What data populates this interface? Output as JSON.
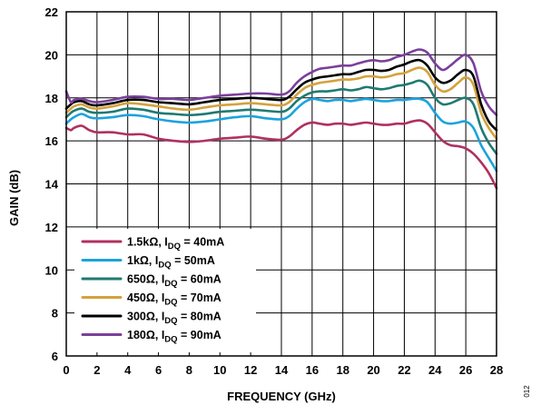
{
  "chart_data": {
    "type": "line",
    "xlabel": "FREQUENCY (GHz)",
    "ylabel": "GAIN (dB)",
    "xlim": [
      0,
      28
    ],
    "ylim": [
      6,
      22
    ],
    "xticks": [
      0,
      2,
      4,
      6,
      8,
      10,
      12,
      14,
      16,
      18,
      20,
      22,
      24,
      26,
      28
    ],
    "yticks": [
      6,
      8,
      10,
      12,
      14,
      16,
      18,
      20,
      22
    ],
    "grid": true,
    "legend_position": "bottom-left",
    "side_note": "012",
    "x": [
      0,
      0.3,
      0.5,
      1,
      1.5,
      2,
      3,
      4,
      5,
      6,
      7,
      8,
      9,
      10,
      11,
      12,
      13,
      14,
      14.5,
      15,
      15.5,
      16,
      16.5,
      17,
      17.5,
      18,
      18.5,
      19,
      19.5,
      20,
      20.5,
      21,
      21.5,
      22,
      22.5,
      23,
      23.5,
      24,
      24.5,
      25,
      25.5,
      26,
      26.5,
      27,
      27.5,
      28
    ],
    "series": [
      {
        "resistor": "1.5kΩ, I",
        "subscript": "DQ",
        "current": " = 40mA",
        "color": "#b03060",
        "values": [
          16.6,
          16.5,
          16.6,
          16.7,
          16.5,
          16.4,
          16.4,
          16.3,
          16.3,
          16.1,
          16.0,
          15.95,
          16.0,
          16.1,
          16.15,
          16.2,
          16.1,
          16.05,
          16.2,
          16.5,
          16.75,
          16.85,
          16.8,
          16.75,
          16.8,
          16.8,
          16.75,
          16.8,
          16.85,
          16.8,
          16.75,
          16.75,
          16.8,
          16.8,
          16.9,
          16.95,
          16.8,
          16.4,
          16.0,
          15.8,
          15.75,
          15.65,
          15.4,
          15.0,
          14.5,
          13.8
        ]
      },
      {
        "resistor": "1kΩ, I",
        "subscript": "DQ",
        "current": " = 50mA",
        "color": "#1ca3dc",
        "values": [
          16.8,
          17.0,
          17.1,
          17.25,
          17.1,
          17.05,
          17.1,
          17.2,
          17.15,
          17.0,
          16.9,
          16.85,
          16.9,
          17.0,
          17.1,
          17.15,
          17.05,
          17.0,
          17.15,
          17.5,
          17.8,
          17.95,
          17.9,
          17.85,
          17.9,
          17.9,
          17.85,
          17.9,
          17.95,
          17.9,
          17.85,
          17.85,
          17.9,
          17.9,
          17.95,
          17.95,
          17.8,
          17.3,
          16.9,
          16.8,
          16.85,
          16.9,
          16.6,
          15.8,
          15.2,
          14.6
        ]
      },
      {
        "resistor": "650Ω, I",
        "subscript": "DQ",
        "current": " = 60mA",
        "color": "#1e7a72",
        "values": [
          17.1,
          17.3,
          17.4,
          17.5,
          17.35,
          17.3,
          17.35,
          17.5,
          17.45,
          17.3,
          17.25,
          17.2,
          17.25,
          17.35,
          17.4,
          17.45,
          17.4,
          17.35,
          17.5,
          17.85,
          18.1,
          18.25,
          18.3,
          18.3,
          18.35,
          18.4,
          18.35,
          18.4,
          18.5,
          18.45,
          18.4,
          18.45,
          18.55,
          18.6,
          18.7,
          18.8,
          18.6,
          18.0,
          17.7,
          17.75,
          17.9,
          18.0,
          17.7,
          16.6,
          15.9,
          15.4
        ]
      },
      {
        "resistor": "450Ω, I",
        "subscript": "DQ",
        "current": " = 70mA",
        "color": "#d4a23c",
        "values": [
          17.3,
          17.5,
          17.6,
          17.7,
          17.55,
          17.5,
          17.6,
          17.75,
          17.7,
          17.6,
          17.5,
          17.45,
          17.55,
          17.65,
          17.7,
          17.75,
          17.7,
          17.65,
          17.8,
          18.15,
          18.45,
          18.6,
          18.7,
          18.75,
          18.8,
          18.85,
          18.85,
          18.9,
          19.0,
          19.0,
          18.95,
          19.0,
          19.1,
          19.15,
          19.3,
          19.4,
          19.2,
          18.6,
          18.3,
          18.4,
          18.7,
          18.95,
          18.6,
          17.3,
          16.6,
          16.1
        ]
      },
      {
        "resistor": "300Ω, I",
        "subscript": "DQ",
        "current": " = 80mA",
        "color": "#000000",
        "values": [
          17.5,
          17.7,
          17.8,
          17.85,
          17.7,
          17.65,
          17.75,
          17.9,
          17.9,
          17.8,
          17.75,
          17.7,
          17.8,
          17.9,
          17.95,
          18.0,
          17.95,
          17.9,
          18.05,
          18.4,
          18.7,
          18.85,
          18.95,
          19.0,
          19.05,
          19.1,
          19.1,
          19.2,
          19.3,
          19.3,
          19.25,
          19.3,
          19.45,
          19.55,
          19.7,
          19.75,
          19.5,
          18.95,
          18.7,
          18.8,
          19.1,
          19.3,
          19.0,
          17.7,
          16.9,
          16.5
        ]
      },
      {
        "resistor": "180Ω, I",
        "subscript": "DQ",
        "current": " = 90mA",
        "color": "#7b3f9c",
        "values": [
          18.3,
          17.8,
          17.9,
          17.95,
          17.85,
          17.8,
          17.9,
          18.05,
          18.05,
          17.95,
          17.95,
          17.9,
          18.0,
          18.1,
          18.15,
          18.2,
          18.2,
          18.15,
          18.3,
          18.7,
          19.0,
          19.2,
          19.35,
          19.4,
          19.45,
          19.5,
          19.5,
          19.6,
          19.7,
          19.75,
          19.7,
          19.75,
          19.9,
          20.0,
          20.15,
          20.25,
          20.1,
          19.6,
          19.3,
          19.5,
          19.8,
          20.0,
          19.6,
          18.3,
          17.6,
          17.2
        ]
      }
    ]
  }
}
